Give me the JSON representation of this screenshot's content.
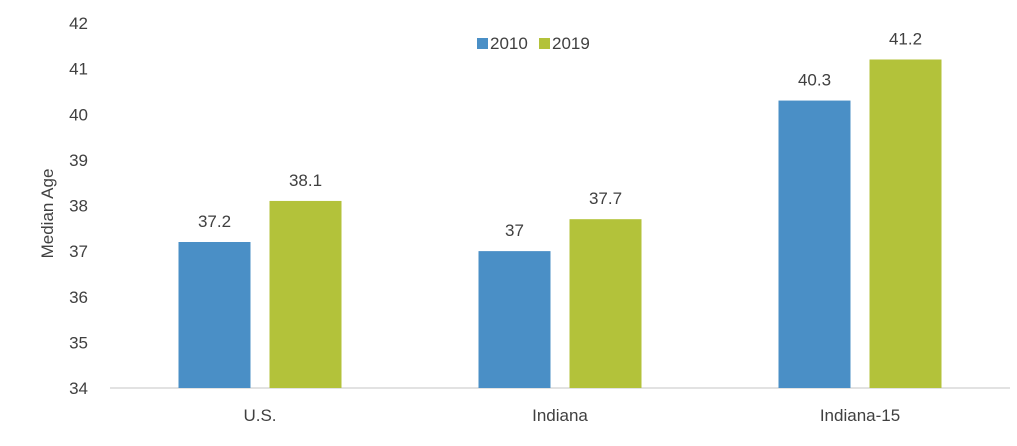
{
  "chart_data": {
    "type": "bar",
    "title": "",
    "xlabel": "",
    "ylabel": "Median Age",
    "ylim": [
      34,
      42
    ],
    "yticks": [
      34,
      35,
      36,
      37,
      38,
      39,
      40,
      41,
      42
    ],
    "categories": [
      "U.S.",
      "Indiana",
      "Indiana-15"
    ],
    "series": [
      {
        "name": "2010",
        "color": "#4a8fc6",
        "values": [
          37.2,
          37,
          40.3
        ],
        "labels": [
          "37.2",
          "37",
          "40.3"
        ]
      },
      {
        "name": "2019",
        "color": "#b3c23a",
        "values": [
          38.1,
          37.7,
          41.2
        ],
        "labels": [
          "38.1",
          "37.7",
          "41.2"
        ]
      }
    ],
    "legend_position": "top-center",
    "grid": false
  }
}
